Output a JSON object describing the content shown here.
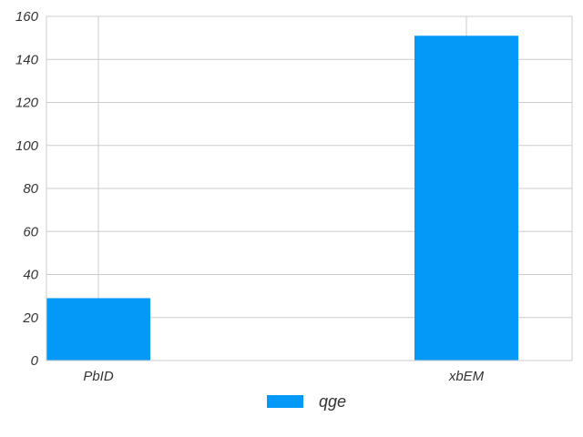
{
  "chart_data": {
    "type": "bar",
    "categories": [
      "PbID",
      "xbEM"
    ],
    "series": [
      {
        "name": "qge",
        "values": [
          29,
          151
        ],
        "color": "#0499f7"
      }
    ],
    "ylim": [
      0,
      160
    ],
    "yticks": [
      0,
      20,
      40,
      60,
      80,
      100,
      120,
      140,
      160
    ],
    "grid": true,
    "legend": "bottom-center"
  }
}
